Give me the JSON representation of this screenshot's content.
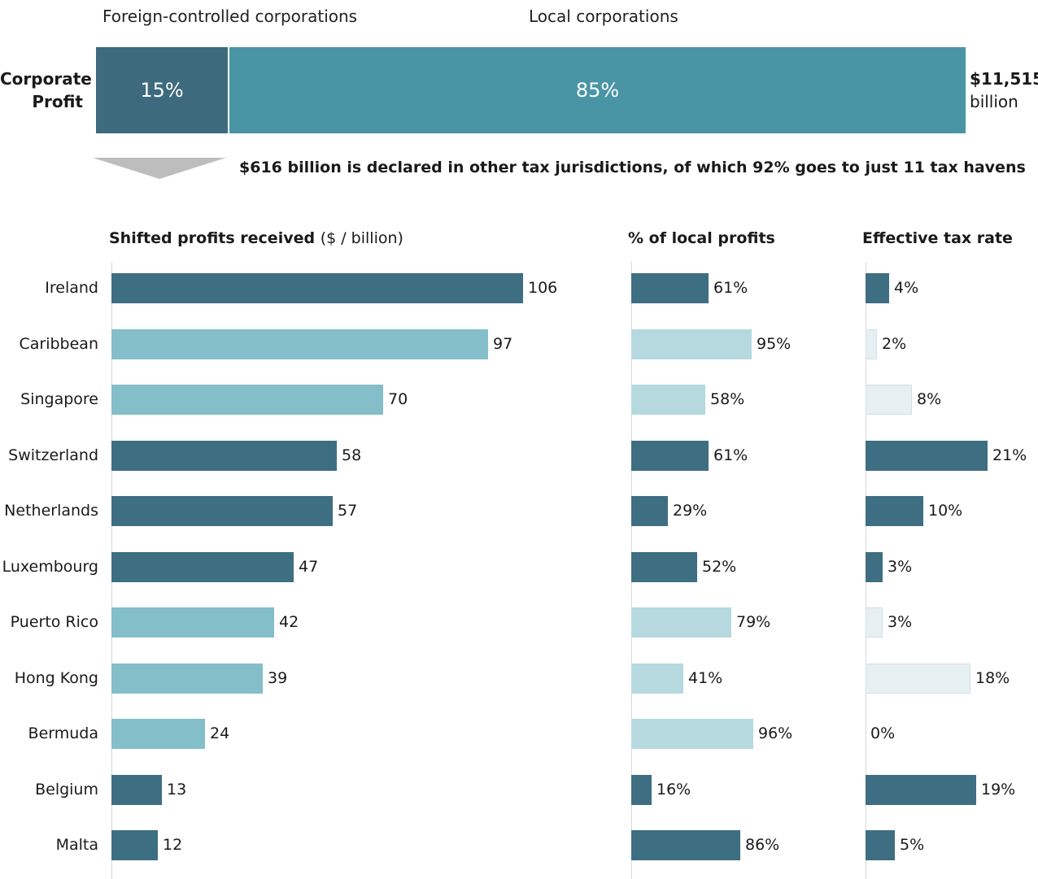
{
  "header": {
    "foreign_label": "Foreign-controlled corporations",
    "local_label": "Local corporations",
    "row_label_line1": "Corporate",
    "row_label_line2": "Profit",
    "foreign_share": "15%",
    "local_share": "85%",
    "foreign_fraction": 0.15,
    "total_value": "$11,515",
    "total_unit": "billion",
    "note": "$616 billion is declared in other tax jurisdictions, of which 92% goes to just 11 tax havens"
  },
  "colors": {
    "foreign_segment": "#3e6a7d",
    "local_segment": "#4a95a5",
    "dark_bar": "#3e6e82",
    "light_bar": "#83bec9",
    "pct_light_bar": "#b5d9df",
    "tax_light_bar": "#e6f0f2",
    "arrow": "#bdbdbd"
  },
  "chart_data": [
    {
      "type": "bar",
      "orientation": "horizontal",
      "title": "Shifted profits received",
      "title_unit": "($  / billion)",
      "categories": [
        "Ireland",
        "Caribbean",
        "Singapore",
        "Switzerland",
        "Netherlands",
        "Luxembourg",
        "Puerto Rico",
        "Hong Kong",
        "Bermuda",
        "Belgium",
        "Malta"
      ],
      "values": [
        106,
        97,
        70,
        58,
        57,
        47,
        42,
        39,
        24,
        13,
        12
      ],
      "labels": [
        "106",
        "97",
        "70",
        "58",
        "57",
        "47",
        "42",
        "39",
        "24",
        "13",
        "12"
      ],
      "shade": [
        "dark",
        "light",
        "light",
        "dark",
        "dark",
        "dark",
        "light",
        "light",
        "light",
        "dark",
        "dark"
      ],
      "xlim": [
        0,
        106
      ]
    },
    {
      "type": "bar",
      "orientation": "horizontal",
      "title": "% of local profits",
      "categories": [
        "Ireland",
        "Caribbean",
        "Singapore",
        "Switzerland",
        "Netherlands",
        "Luxembourg",
        "Puerto Rico",
        "Hong Kong",
        "Bermuda",
        "Belgium",
        "Malta"
      ],
      "values": [
        61,
        95,
        58,
        61,
        29,
        52,
        79,
        41,
        96,
        16,
        86
      ],
      "labels": [
        "61%",
        "95%",
        "58%",
        "61%",
        "29%",
        "52%",
        "79%",
        "41%",
        "96%",
        "16%",
        "86%"
      ],
      "shade": [
        "dark",
        "light",
        "light",
        "dark",
        "dark",
        "dark",
        "light",
        "light",
        "light",
        "dark",
        "dark"
      ],
      "xlim": [
        0,
        96
      ]
    },
    {
      "type": "bar",
      "orientation": "horizontal",
      "title": "Effective tax rate",
      "categories": [
        "Ireland",
        "Caribbean",
        "Singapore",
        "Switzerland",
        "Netherlands",
        "Luxembourg",
        "Puerto Rico",
        "Hong Kong",
        "Bermuda",
        "Belgium",
        "Malta"
      ],
      "values": [
        4,
        2,
        8,
        21,
        10,
        3,
        3,
        18,
        0,
        19,
        5
      ],
      "labels": [
        "4%",
        "2%",
        "8%",
        "21%",
        "10%",
        "3%",
        "3%",
        "18%",
        "0%",
        "19%",
        "5%"
      ],
      "shade": [
        "dark",
        "light",
        "light",
        "dark",
        "dark",
        "dark",
        "light",
        "light",
        "light",
        "dark",
        "dark"
      ],
      "xlim": [
        0,
        21
      ]
    }
  ]
}
